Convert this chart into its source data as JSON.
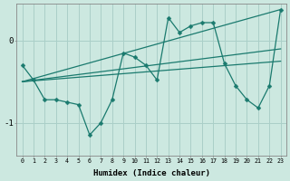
{
  "xlabel": "Humidex (Indice chaleur)",
  "bg_color": "#cce8e0",
  "grid_color": "#aacfc8",
  "line_color": "#1a7a6e",
  "xlim": [
    -0.5,
    23.5
  ],
  "ylim": [
    -1.4,
    0.45
  ],
  "yticks": [
    0,
    -1
  ],
  "xticks": [
    0,
    1,
    2,
    3,
    4,
    5,
    6,
    7,
    8,
    9,
    10,
    11,
    12,
    13,
    14,
    15,
    16,
    17,
    18,
    19,
    20,
    21,
    22,
    23
  ],
  "series": [
    {
      "x": [
        0,
        1,
        2,
        3,
        4,
        5,
        6,
        7,
        8,
        9,
        10,
        11,
        12,
        13,
        14,
        15,
        16,
        17,
        18,
        19,
        20,
        21,
        22,
        23
      ],
      "y": [
        -0.3,
        -0.48,
        -0.72,
        -0.72,
        -0.75,
        -0.78,
        -1.15,
        -1.0,
        -0.72,
        -0.15,
        -0.2,
        -0.3,
        -0.48,
        0.28,
        0.1,
        0.18,
        0.22,
        0.22,
        -0.28,
        -0.55,
        -0.72,
        -0.82,
        -0.55,
        0.38
      ]
    },
    {
      "x": [
        0,
        23
      ],
      "y": [
        -0.5,
        0.38
      ]
    },
    {
      "x": [
        0,
        23
      ],
      "y": [
        -0.5,
        -0.1
      ]
    },
    {
      "x": [
        0,
        23
      ],
      "y": [
        -0.5,
        -0.25
      ]
    }
  ]
}
